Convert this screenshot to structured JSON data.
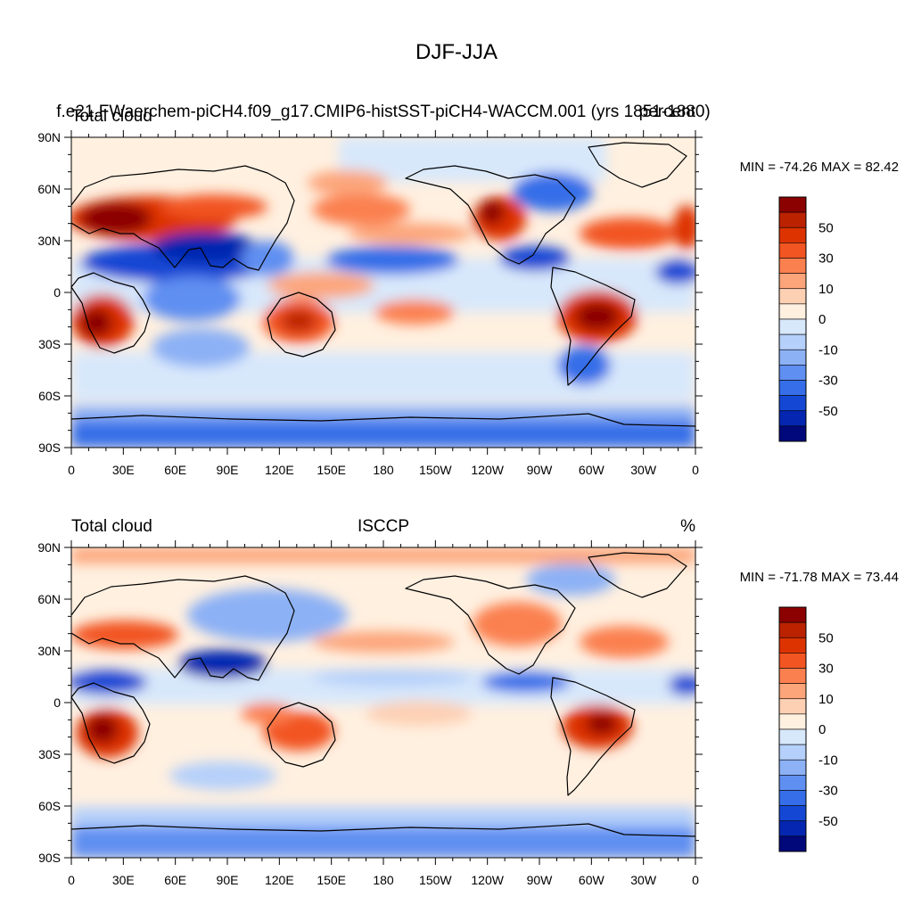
{
  "figure": {
    "title": "DJF-JJA",
    "colors": {
      "land_outline": "#000000",
      "frame": "#000000",
      "background": "#ffffff"
    }
  },
  "colorbar": {
    "colors": [
      "#8b0000",
      "#bb2200",
      "#dd3300",
      "#f25522",
      "#fb8050",
      "#fca57a",
      "#fdd0b4",
      "#fff0e0",
      "#d8e8fb",
      "#b5d0fa",
      "#8cb1f5",
      "#5f8ff1",
      "#356ee8",
      "#1447d4",
      "#0526b0",
      "#00087a"
    ],
    "labels": [
      "50",
      "30",
      "10",
      "0",
      "-10",
      "-30",
      "-50"
    ]
  },
  "x_ticks": [
    "0",
    "30E",
    "60E",
    "90E",
    "120E",
    "150E",
    "180",
    "150W",
    "120W",
    "90W",
    "60W",
    "30W",
    "0"
  ],
  "y_ticks": [
    "90N",
    "60N",
    "30N",
    "0",
    "30S",
    "60S",
    "90S"
  ],
  "panels": [
    {
      "id": "model",
      "left_title": "Total cloud",
      "center_title": "f.e21.FWaerchem-piCH4.f09_g17.CMIP6-histSST-piCH4-WACCM.001 (yrs 1851-1880)",
      "right_title": "percent",
      "min_max": "MIN = -74.26 MAX =  82.42"
    },
    {
      "id": "obs",
      "left_title": "Total cloud",
      "center_title": "ISCCP",
      "right_title": "%",
      "min_max": "MIN = -71.78 MAX =  73.44"
    }
  ]
}
